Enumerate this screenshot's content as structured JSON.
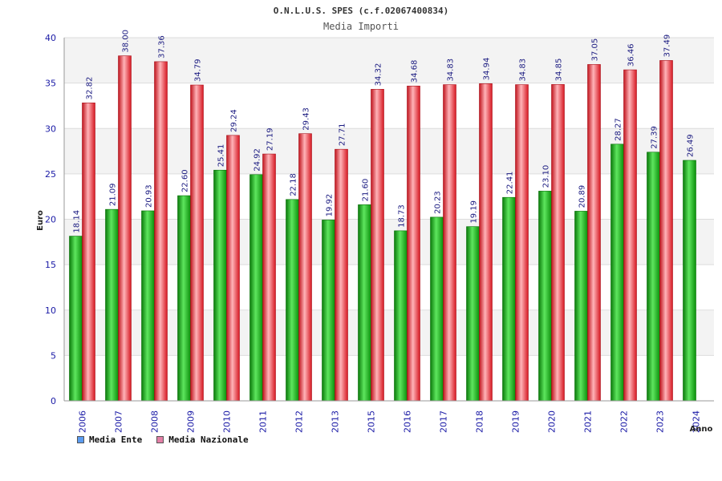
{
  "chart_data": {
    "type": "bar",
    "title": "O.N.L.U.S. SPES (c.f.02067400834)",
    "subtitle": "Media Importi",
    "ylabel": "Euro",
    "xlabel": "Anno",
    "ylim": [
      0,
      40
    ],
    "yticks": [
      0,
      5,
      10,
      15,
      20,
      25,
      30,
      35,
      40
    ],
    "grid": true,
    "legend_position": "bottom-left",
    "categories": [
      "2006",
      "2007",
      "2008",
      "2009",
      "2010",
      "2011",
      "2012",
      "2013",
      "2015",
      "2016",
      "2017",
      "2018",
      "2019",
      "2020",
      "2021",
      "2022",
      "2023",
      "2024"
    ],
    "series": [
      {
        "name": "Media Ente",
        "color": "#0fa80f",
        "legend_color": "#5b9bf0",
        "values": [
          18.14,
          21.09,
          20.93,
          22.6,
          25.41,
          24.92,
          22.18,
          19.92,
          21.6,
          18.73,
          20.23,
          19.19,
          22.41,
          23.1,
          20.89,
          28.27,
          27.39,
          26.49
        ],
        "labels": [
          "18.14",
          "21.09",
          "20.93",
          "22.60",
          "25.41",
          "24.92",
          "22.18",
          "19.92",
          "21.60",
          "18.73",
          "20.23",
          "19.19",
          "22.41",
          "23.10",
          "20.89",
          "28.27",
          "27.39",
          "26.49"
        ]
      },
      {
        "name": "Media Nazionale",
        "color": "#e8202a",
        "legend_color": "#e37fa6",
        "values": [
          32.82,
          38.0,
          37.36,
          34.79,
          29.24,
          27.19,
          29.43,
          27.71,
          34.32,
          34.68,
          34.83,
          34.94,
          34.83,
          34.85,
          37.05,
          36.46,
          37.49,
          null
        ],
        "labels": [
          "32.82",
          "38.00",
          "37.36",
          "34.79",
          "29.24",
          "27.19",
          "29.43",
          "27.71",
          "34.32",
          "34.68",
          "34.83",
          "34.94",
          "34.83",
          "34.85",
          "37.05",
          "36.46",
          "37.49",
          null
        ]
      }
    ]
  }
}
